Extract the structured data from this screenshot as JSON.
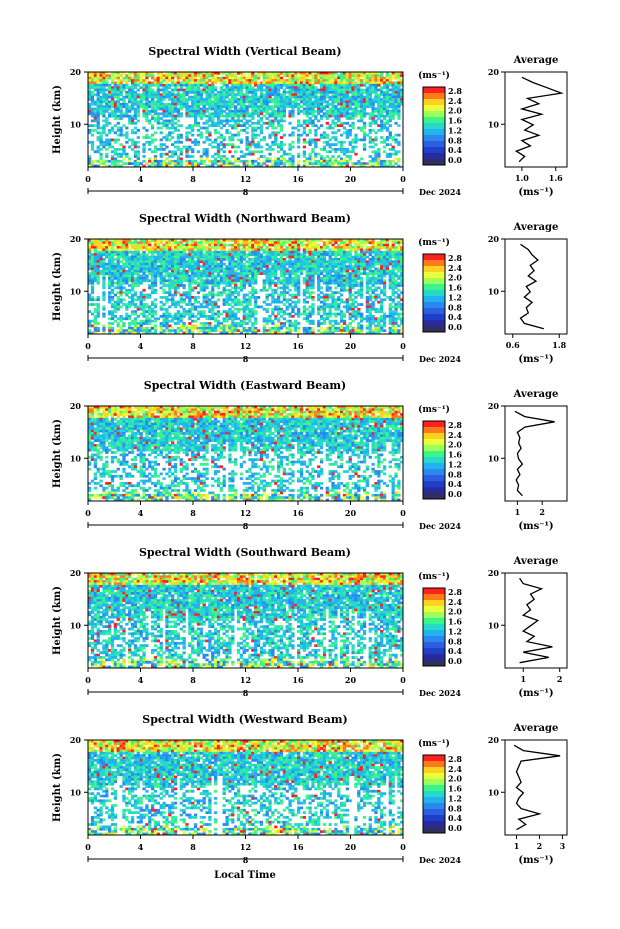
{
  "bottom_label": "Local Time",
  "date_label": "Dec 2024",
  "day_label": "8",
  "unit_label": "(ms⁻¹)",
  "ylabel": "Height (km)",
  "avg_title": "Average",
  "colorbar": {
    "ticks": [
      "2.8",
      "2.4",
      "2.0",
      "1.6",
      "1.2",
      "0.8",
      "0.4",
      "0.0"
    ],
    "colors": [
      "#ff2020",
      "#ff7a1a",
      "#ffd21f",
      "#e9ff3b",
      "#9dff5a",
      "#3cf58a",
      "#26d9c8",
      "#22b2ee",
      "#2b88ee",
      "#2b5fe0",
      "#1f3fc8",
      "#2a2aa0",
      "#303060"
    ]
  },
  "chart_data": [
    {
      "type": "heatmap",
      "title": "Spectral Width (Vertical Beam)",
      "xlabel": "Local Time",
      "ylabel": "Height (km)",
      "x_ticks": [
        "0",
        "4",
        "8",
        "12",
        "16",
        "20",
        "0"
      ],
      "y_ticks": [
        "20",
        "10"
      ],
      "xlim": [
        0,
        24
      ],
      "ylim": [
        2,
        20
      ],
      "colorbar_range": [
        0.0,
        2.8
      ],
      "average_profile": {
        "xlabel": "(ms⁻¹)",
        "x_ticks": [
          "1.0",
          "1.6"
        ],
        "xlim": [
          0.7,
          1.8
        ],
        "height": [
          3,
          4,
          5,
          6,
          7,
          8,
          9,
          10,
          11,
          12,
          13,
          14,
          15,
          16,
          17,
          18,
          19
        ],
        "values": [
          0.95,
          1.05,
          0.9,
          1.15,
          1.0,
          1.3,
          1.05,
          1.2,
          1.0,
          1.35,
          1.0,
          1.3,
          1.1,
          1.7,
          1.45,
          1.2,
          1.0
        ]
      }
    },
    {
      "type": "heatmap",
      "title": "Spectral Width (Northward Beam)",
      "xlabel": "Local Time",
      "ylabel": "Height (km)",
      "x_ticks": [
        "0",
        "4",
        "8",
        "12",
        "16",
        "20",
        "0"
      ],
      "y_ticks": [
        "20",
        "10"
      ],
      "xlim": [
        0,
        24
      ],
      "ylim": [
        2,
        20
      ],
      "colorbar_range": [
        0.0,
        2.8
      ],
      "average_profile": {
        "xlabel": "(ms⁻¹)",
        "x_ticks": [
          "0.6",
          "1.8"
        ],
        "xlim": [
          0.4,
          2.0
        ],
        "height": [
          3,
          4,
          5,
          6,
          7,
          8,
          9,
          10,
          11,
          12,
          13,
          14,
          15,
          16,
          17,
          18,
          19
        ],
        "values": [
          1.4,
          0.9,
          0.8,
          1.0,
          0.95,
          1.1,
          0.9,
          1.05,
          0.95,
          1.2,
          1.0,
          1.15,
          1.05,
          1.25,
          1.1,
          1.0,
          0.8
        ]
      }
    },
    {
      "type": "heatmap",
      "title": "Spectral Width (Eastward Beam)",
      "xlabel": "Local Time",
      "ylabel": "Height (km)",
      "x_ticks": [
        "0",
        "4",
        "8",
        "12",
        "16",
        "20",
        "0"
      ],
      "y_ticks": [
        "20",
        "10"
      ],
      "xlim": [
        0,
        24
      ],
      "ylim": [
        2,
        20
      ],
      "colorbar_range": [
        0.0,
        2.8
      ],
      "average_profile": {
        "xlabel": "(ms⁻¹)",
        "x_ticks": [
          "1",
          "2"
        ],
        "xlim": [
          0.5,
          3.0
        ],
        "height": [
          3,
          4,
          5,
          6,
          7,
          8,
          9,
          10,
          11,
          12,
          13,
          14,
          15,
          16,
          17,
          18,
          19
        ],
        "values": [
          1.2,
          1.0,
          1.05,
          0.95,
          1.1,
          1.0,
          1.2,
          1.05,
          1.0,
          1.15,
          1.05,
          1.1,
          1.0,
          1.3,
          2.5,
          1.3,
          0.9
        ]
      }
    },
    {
      "type": "heatmap",
      "title": "Spectral Width (Southward Beam)",
      "xlabel": "Local Time",
      "ylabel": "Height (km)",
      "x_ticks": [
        "0",
        "4",
        "8",
        "12",
        "16",
        "20",
        "0"
      ],
      "y_ticks": [
        "20",
        "10"
      ],
      "xlim": [
        0,
        24
      ],
      "ylim": [
        2,
        20
      ],
      "colorbar_range": [
        0.0,
        2.8
      ],
      "average_profile": {
        "xlabel": "(ms⁻¹)",
        "x_ticks": [
          "1",
          "2"
        ],
        "xlim": [
          0.5,
          2.2
        ],
        "height": [
          3,
          4,
          5,
          6,
          7,
          8,
          9,
          10,
          11,
          12,
          13,
          14,
          15,
          16,
          17,
          18,
          19
        ],
        "values": [
          0.9,
          1.7,
          1.0,
          1.8,
          1.1,
          1.3,
          1.0,
          1.2,
          1.4,
          1.0,
          1.2,
          1.1,
          1.3,
          1.2,
          1.5,
          1.0,
          0.9
        ]
      }
    },
    {
      "type": "heatmap",
      "title": "Spectral Width (Westward Beam)",
      "xlabel": "Local Time",
      "ylabel": "Height (km)",
      "x_ticks": [
        "0",
        "4",
        "8",
        "12",
        "16",
        "20",
        "0"
      ],
      "y_ticks": [
        "20",
        "10"
      ],
      "xlim": [
        0,
        24
      ],
      "ylim": [
        2,
        20
      ],
      "colorbar_range": [
        0.0,
        2.8
      ],
      "average_profile": {
        "xlabel": "(ms⁻¹)",
        "x_ticks": [
          "1",
          "2",
          "3"
        ],
        "xlim": [
          0.5,
          3.2
        ],
        "height": [
          3,
          4,
          5,
          6,
          7,
          8,
          9,
          10,
          11,
          12,
          13,
          14,
          15,
          16,
          17,
          18,
          19
        ],
        "values": [
          1.0,
          1.4,
          1.1,
          2.0,
          1.2,
          1.0,
          1.1,
          1.3,
          1.0,
          1.2,
          1.1,
          1.0,
          1.1,
          1.2,
          2.9,
          1.3,
          0.9
        ]
      }
    }
  ]
}
